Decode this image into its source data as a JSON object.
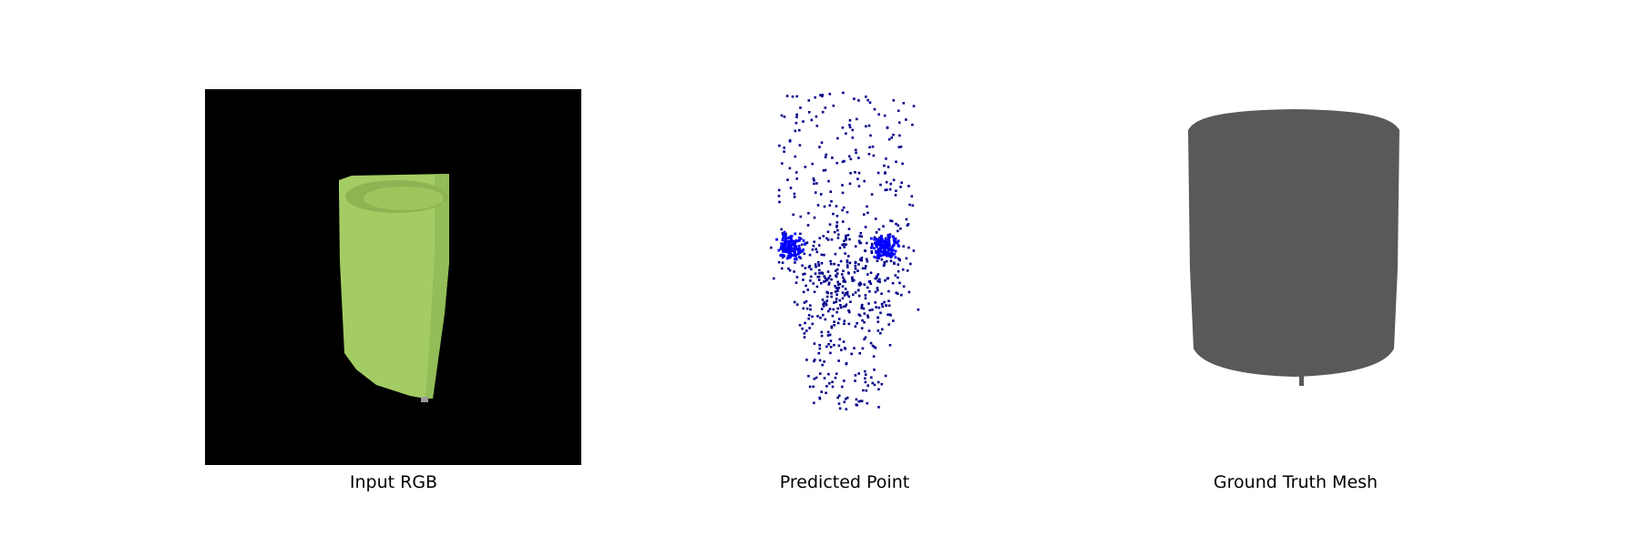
{
  "figure": {
    "panels": [
      {
        "id": "input-rgb",
        "caption": "Input RGB"
      },
      {
        "id": "predicted-point",
        "caption": "Predicted Point"
      },
      {
        "id": "ground-truth-mesh",
        "caption": "Ground Truth Mesh"
      }
    ]
  },
  "colors": {
    "background": "#ffffff",
    "image_bg": "#000000",
    "object_green": "#a3cd64",
    "object_green_dark": "#8db352",
    "points": "#00008b",
    "points_dense": "#0000ff",
    "mesh": "#595959"
  }
}
